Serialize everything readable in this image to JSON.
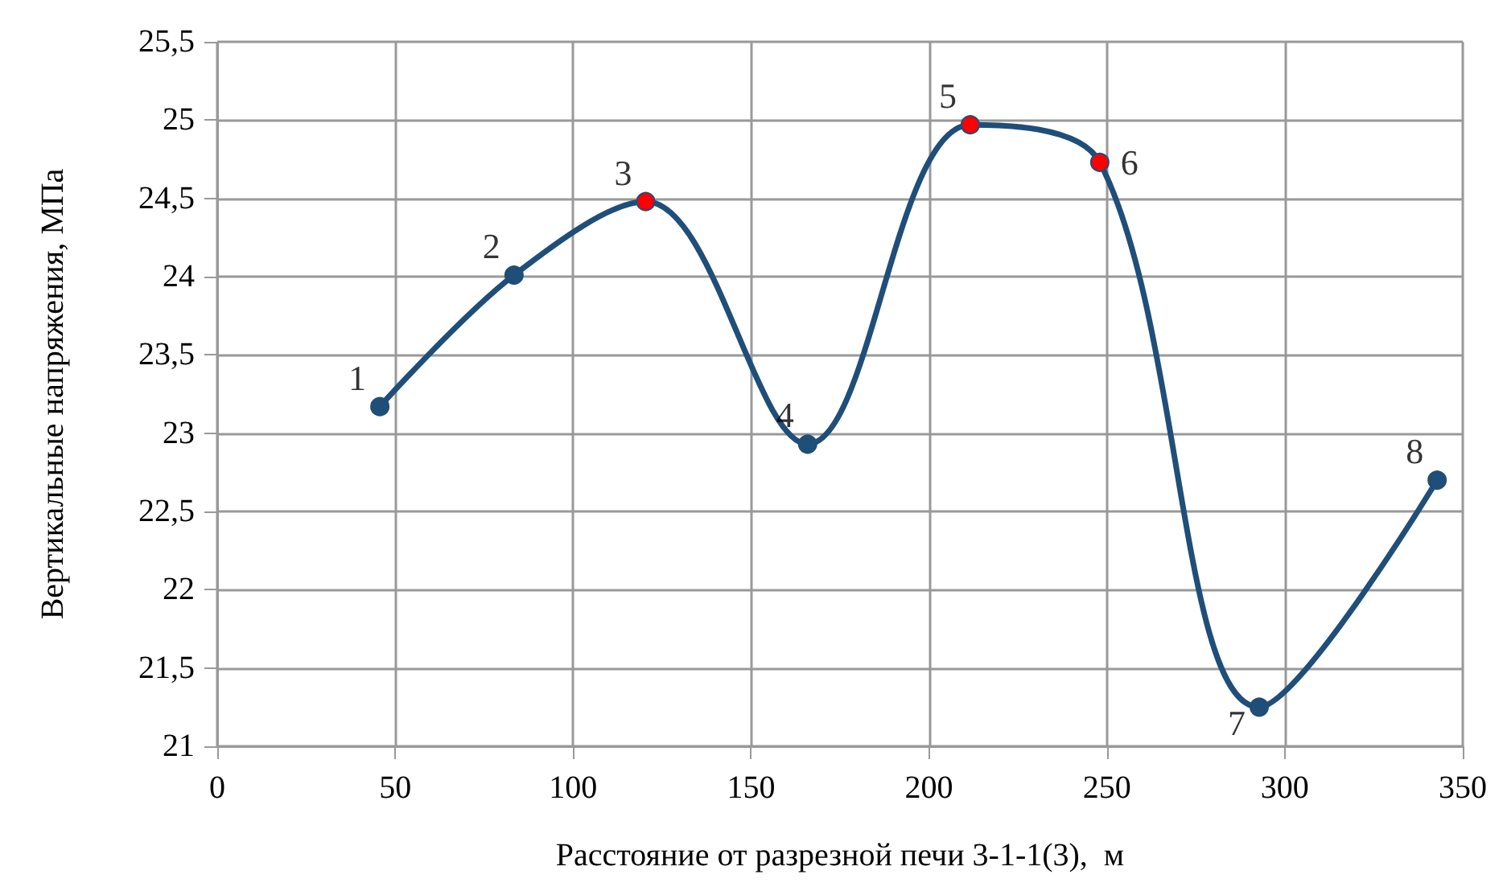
{
  "chart_data": {
    "type": "line",
    "xlabel": "Расстояние от разрезной печи 3-1-1(3),  м",
    "ylabel": "Вертикальные напряжения, МПа",
    "x": [
      45.7,
      83.4,
      120.4,
      165.9,
      211.6,
      248,
      292.8,
      342.8
    ],
    "series": [
      {
        "color": "#1f4e79",
        "colors": [
          "#1f4e79",
          "#1f4e79",
          "#ff0000",
          "#1f4e79",
          "#ff0000",
          "#ff0000",
          "#1f4e79",
          "#1f4e79"
        ],
        "values": [
          23.17,
          24.01,
          24.48,
          22.93,
          24.97,
          24.73,
          21.25,
          22.7
        ]
      }
    ],
    "annotations": [
      {
        "text": "1",
        "x": 45.7,
        "y": 23.17
      },
      {
        "text": "2",
        "x": 83.4,
        "y": 24.01
      },
      {
        "text": "3",
        "x": 120.4,
        "y": 24.48
      },
      {
        "text": "4",
        "x": 165.9,
        "y": 22.93
      },
      {
        "text": "5",
        "x": 211.6,
        "y": 24.97
      },
      {
        "text": "6",
        "x": 248,
        "y": 24.73
      },
      {
        "text": "7",
        "x": 292.8,
        "y": 21.25
      },
      {
        "text": "8",
        "x": 342.8,
        "y": 22.7
      }
    ],
    "xlim": [
      0,
      350
    ],
    "xticks": [
      0,
      50,
      100,
      150,
      200,
      250,
      300,
      350
    ],
    "ylim": [
      21,
      25.5
    ],
    "yticks": [
      21,
      {
        "value": 21.5,
        "label": "21,5"
      },
      22,
      {
        "value": 22.5,
        "label": "22,5"
      },
      23,
      {
        "value": 23.5,
        "label": "23,5"
      },
      24,
      {
        "value": 24.5,
        "label": "24,5"
      },
      25,
      {
        "value": 25.5,
        "label": "25,5"
      }
    ],
    "grid": true,
    "marker": "circle",
    "line_style": "solid"
  }
}
